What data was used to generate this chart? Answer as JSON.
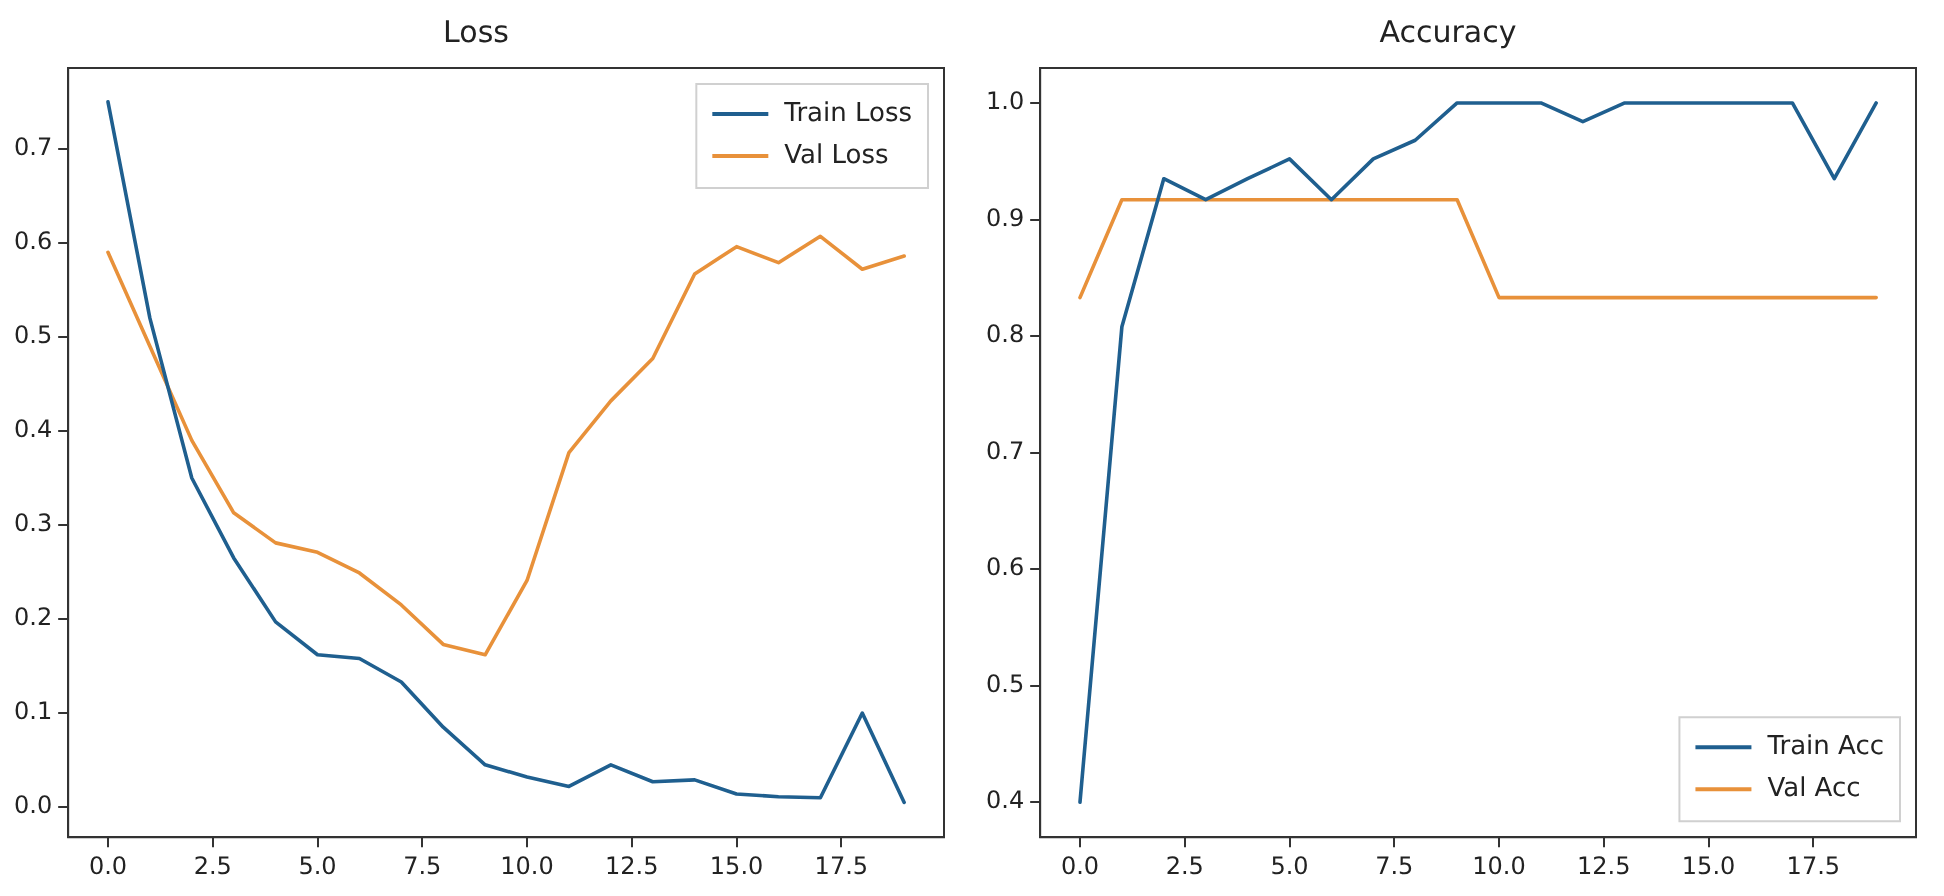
{
  "chart_data": [
    {
      "type": "line",
      "title": "Loss",
      "x": [
        0,
        1,
        2,
        3,
        4,
        5,
        6,
        7,
        8,
        9,
        10,
        11,
        12,
        13,
        14,
        15,
        16,
        17,
        18,
        19
      ],
      "series": [
        {
          "name": "Train Loss",
          "color": "#1f5f8f",
          "values": [
            0.75,
            0.52,
            0.35,
            0.265,
            0.197,
            0.162,
            0.158,
            0.133,
            0.085,
            0.045,
            0.032,
            0.022,
            0.045,
            0.027,
            0.029,
            0.014,
            0.011,
            0.01,
            0.1,
            0.005
          ]
        },
        {
          "name": "Val Loss",
          "color": "#e8913a",
          "values": [
            0.59,
            0.49,
            0.39,
            0.313,
            0.281,
            0.271,
            0.249,
            0.215,
            0.173,
            0.162,
            0.241,
            0.377,
            0.432,
            0.477,
            0.567,
            0.596,
            0.579,
            0.607,
            0.572,
            0.586
          ]
        }
      ],
      "xlim": [
        -0.95,
        19.95
      ],
      "xticks": [
        {
          "value": 0,
          "label": "0.0"
        },
        {
          "value": 2.5,
          "label": "2.5"
        },
        {
          "value": 5,
          "label": "5.0"
        },
        {
          "value": 7.5,
          "label": "7.5"
        },
        {
          "value": 10,
          "label": "10.0"
        },
        {
          "value": 12.5,
          "label": "12.5"
        },
        {
          "value": 15,
          "label": "15.0"
        },
        {
          "value": 17.5,
          "label": "17.5"
        }
      ],
      "ylim": [
        -0.032,
        0.786
      ],
      "yticks": [
        {
          "value": 0,
          "label": "0.0"
        },
        {
          "value": 0.1,
          "label": "0.1"
        },
        {
          "value": 0.2,
          "label": "0.2"
        },
        {
          "value": 0.3,
          "label": "0.3"
        },
        {
          "value": 0.4,
          "label": "0.4"
        },
        {
          "value": 0.5,
          "label": "0.5"
        },
        {
          "value": 0.6,
          "label": "0.6"
        },
        {
          "value": 0.7,
          "label": "0.7"
        }
      ],
      "grid": false,
      "legend": "top right",
      "marker": "none",
      "line_style": "solid"
    },
    {
      "type": "line",
      "title": "Accuracy",
      "x": [
        0,
        1,
        2,
        3,
        4,
        5,
        6,
        7,
        8,
        9,
        10,
        11,
        12,
        13,
        14,
        15,
        16,
        17,
        18,
        19
      ],
      "series": [
        {
          "name": "Train Acc",
          "color": "#1f5f8f",
          "values": [
            0.4,
            0.808,
            0.935,
            0.917,
            0.935,
            0.952,
            0.917,
            0.952,
            0.968,
            1.0,
            1.0,
            1.0,
            0.984,
            1.0,
            1.0,
            1.0,
            1.0,
            1.0,
            0.935,
            1.0
          ]
        },
        {
          "name": "Val Acc",
          "color": "#e8913a",
          "values": [
            0.833,
            0.917,
            0.917,
            0.917,
            0.917,
            0.917,
            0.917,
            0.917,
            0.917,
            0.917,
            0.833,
            0.833,
            0.833,
            0.833,
            0.833,
            0.833,
            0.833,
            0.833,
            0.833,
            0.833
          ]
        }
      ],
      "xlim": [
        -0.95,
        19.95
      ],
      "xticks": [
        {
          "value": 0,
          "label": "0.0"
        },
        {
          "value": 2.5,
          "label": "2.5"
        },
        {
          "value": 5,
          "label": "5.0"
        },
        {
          "value": 7.5,
          "label": "7.5"
        },
        {
          "value": 10,
          "label": "10.0"
        },
        {
          "value": 12.5,
          "label": "12.5"
        },
        {
          "value": 15,
          "label": "15.0"
        },
        {
          "value": 17.5,
          "label": "17.5"
        }
      ],
      "ylim": [
        0.37,
        1.03
      ],
      "yticks": [
        {
          "value": 0.4,
          "label": "0.4"
        },
        {
          "value": 0.5,
          "label": "0.5"
        },
        {
          "value": 0.6,
          "label": "0.6"
        },
        {
          "value": 0.7,
          "label": "0.7"
        },
        {
          "value": 0.8,
          "label": "0.8"
        },
        {
          "value": 0.9,
          "label": "0.9"
        },
        {
          "value": 1.0,
          "label": "1.0"
        }
      ],
      "grid": false,
      "legend": "bottom right",
      "marker": "none",
      "line_style": "solid"
    }
  ]
}
